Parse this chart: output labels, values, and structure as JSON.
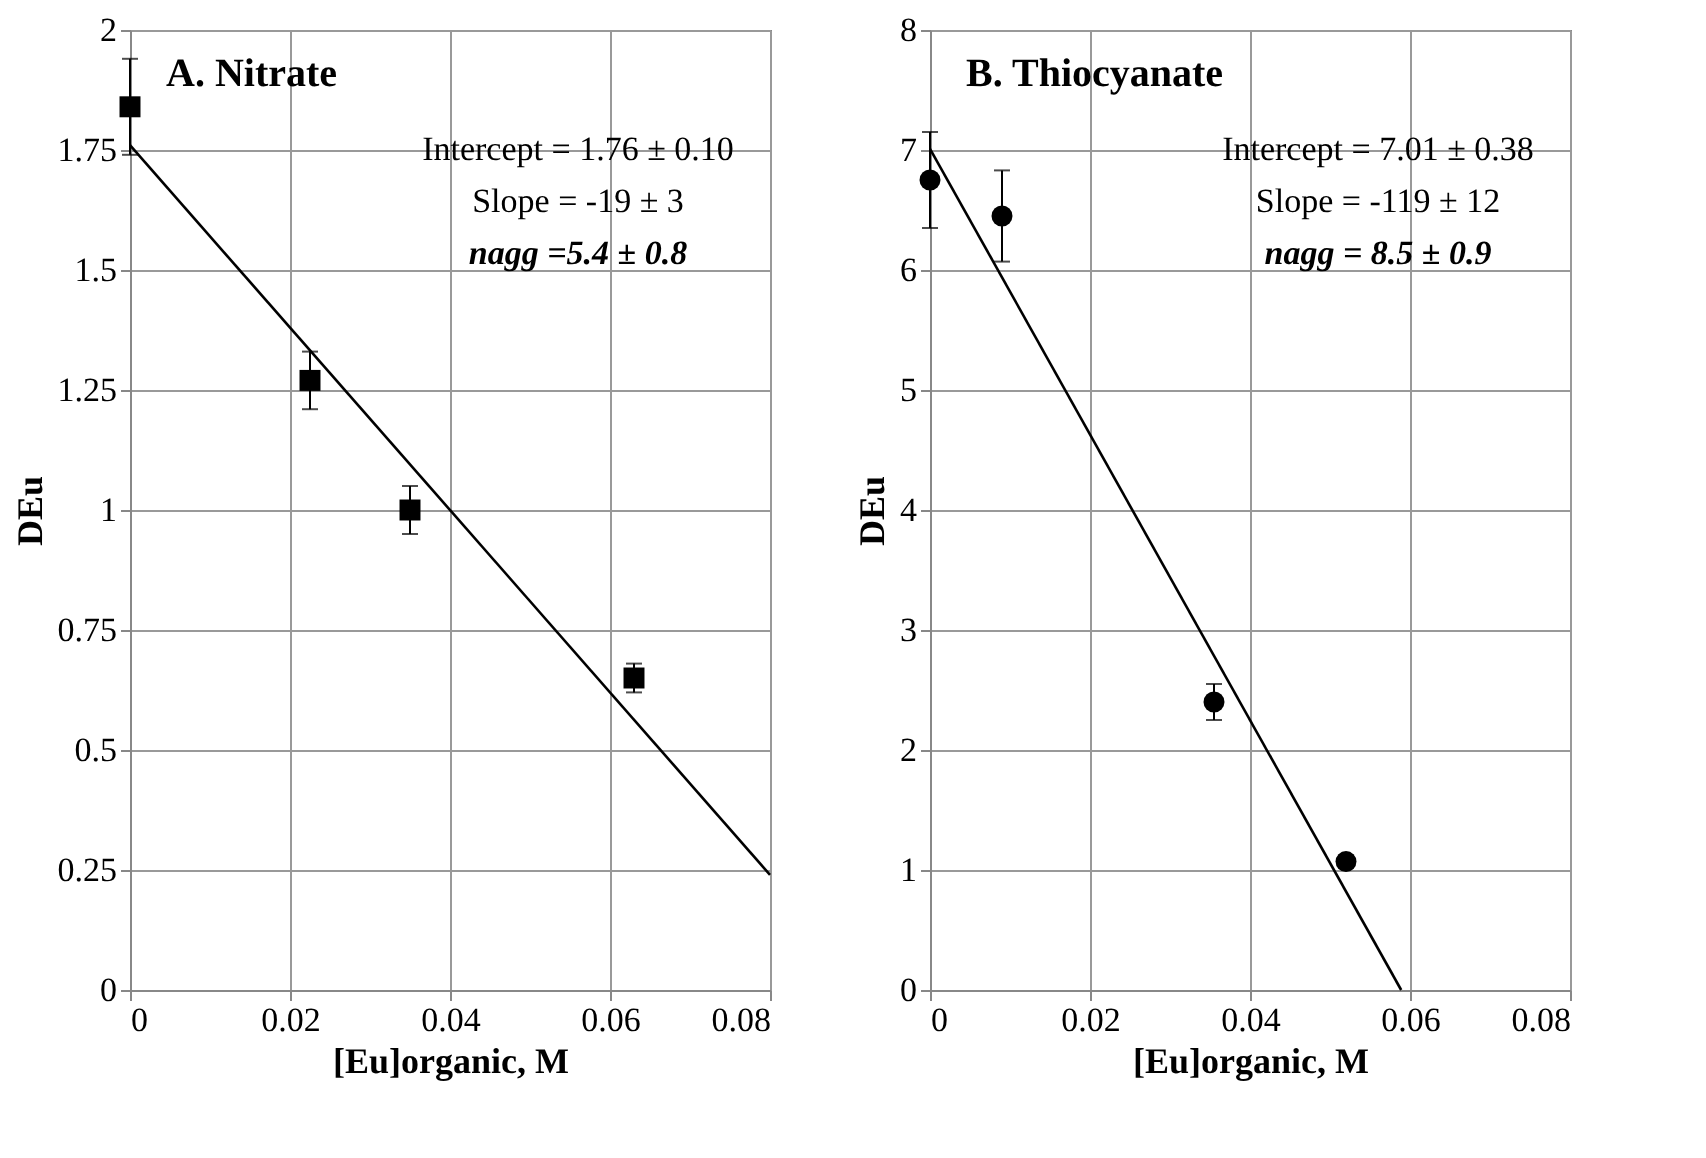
{
  "chart_data": [
    {
      "type": "scatter",
      "title": "A. Nitrate",
      "xlabel": "[Eu]organic, M",
      "ylabel": "DEu",
      "annotations": [
        "Intercept = 1.76 ± 0.10",
        "Slope = -19 ± 3",
        "nagg =5.4 ± 0.8"
      ],
      "series": [
        {
          "marker": "square",
          "color": "#000000",
          "x": [
            0,
            0.0225,
            0.035,
            0.063
          ],
          "values": [
            1.84,
            1.27,
            1.0,
            0.65
          ],
          "errors": [
            0.1,
            0.06,
            0.05,
            0.03
          ]
        },
        {
          "type": "line",
          "color": "#000000",
          "x": [
            0,
            0.08
          ],
          "values": [
            1.76,
            0.24
          ]
        }
      ],
      "xlim": [
        0,
        0.08
      ],
      "xticks": [
        0,
        0.02,
        0.04,
        0.06,
        0.08
      ],
      "ylim": [
        0,
        2
      ],
      "yticks": [
        0,
        0.25,
        0.5,
        0.75,
        1,
        1.25,
        1.5,
        1.75,
        2
      ],
      "grid": true
    },
    {
      "type": "scatter",
      "title": "B. Thiocyanate",
      "xlabel": "[Eu]organic, M",
      "ylabel": "DEu",
      "annotations": [
        "Intercept = 7.01 ± 0.38",
        "Slope = -119 ± 12",
        "nagg = 8.5 ± 0.9"
      ],
      "series": [
        {
          "marker": "circle",
          "color": "#000000",
          "x": [
            0,
            0.009,
            0.0355,
            0.052
          ],
          "values": [
            6.75,
            6.45,
            2.4,
            1.07
          ],
          "errors": [
            0.4,
            0.38,
            0.15,
            0.05
          ]
        },
        {
          "type": "line",
          "color": "#000000",
          "x": [
            0,
            0.0589
          ],
          "values": [
            7.01,
            0
          ]
        }
      ],
      "xlim": [
        0,
        0.08
      ],
      "xticks": [
        0,
        0.02,
        0.04,
        0.06,
        0.08
      ],
      "ylim": [
        0,
        8
      ],
      "yticks": [
        0,
        1,
        2,
        3,
        4,
        5,
        6,
        7,
        8
      ],
      "grid": true
    }
  ]
}
